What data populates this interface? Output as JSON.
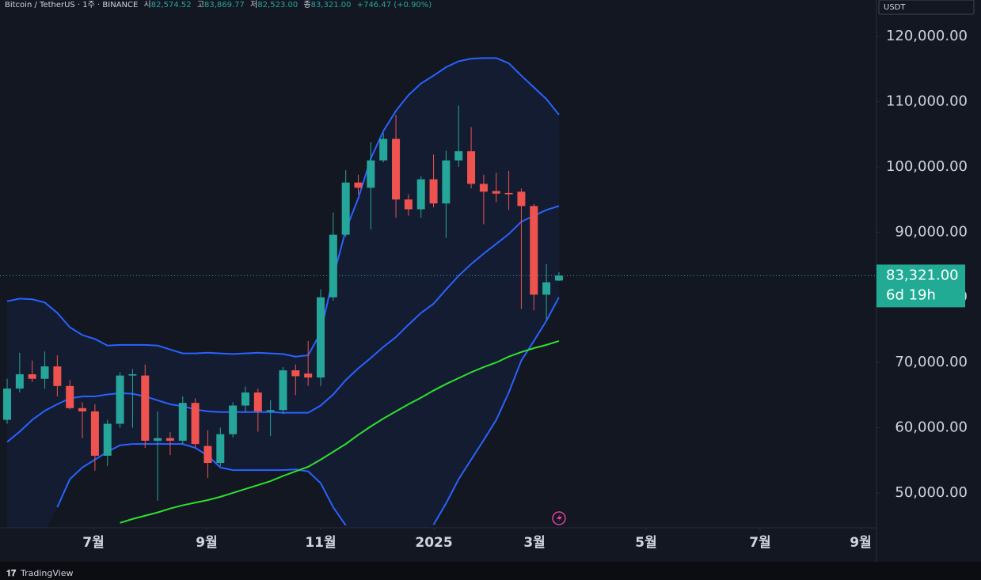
{
  "header": {
    "symbol": "Bitcoin / TetherUS · 1주 · BINANCE",
    "open_label": "시",
    "open": "82,574.52",
    "high_label": "고",
    "high": "83,869.77",
    "low_label": "저",
    "low": "82,523.00",
    "close_label": "종",
    "close": "83,321.00",
    "change": "+746.47 (+0.90%)"
  },
  "footer": {
    "brand": "TradingView"
  },
  "chart_data": {
    "type": "candlestick",
    "currency": "USDT",
    "countdown": "6d 19h",
    "last_price_label": "83,321.00",
    "up_color": "#26a69a",
    "down_color": "#ef5350",
    "ylim": [
      44650,
      125600
    ],
    "yticks": [
      {
        "value": 50000,
        "label": "50,000.00"
      },
      {
        "value": 60000,
        "label": "60,000.00"
      },
      {
        "value": 70000,
        "label": "70,000.00"
      },
      {
        "value": 80000,
        "label": "80,000.00"
      },
      {
        "value": 90000,
        "label": "90,000.00"
      },
      {
        "value": 100000,
        "label": "100,000.00"
      },
      {
        "value": 110000,
        "label": "110,000.00"
      },
      {
        "value": 120000,
        "label": "120,000.00"
      }
    ],
    "xlim": [
      -0.57,
      69.32
    ],
    "xticks": [
      {
        "value": 6.88,
        "label": "7월"
      },
      {
        "value": 15.91,
        "label": "9월"
      },
      {
        "value": 25.0,
        "label": "11월"
      },
      {
        "value": 34.03,
        "label": "2025"
      },
      {
        "value": 42.05,
        "label": "3월"
      },
      {
        "value": 50.95,
        "label": "5월"
      },
      {
        "value": 60.04,
        "label": "7월"
      },
      {
        "value": 68.06,
        "label": "9월"
      }
    ],
    "open": [
      61200,
      66000,
      68200,
      67500,
      69400,
      66400,
      63000,
      62500,
      55700,
      60600,
      68000,
      68000,
      58000,
      58400,
      58000,
      63800,
      57200,
      54600,
      59000,
      63400,
      65400,
      62500,
      62700,
      68800,
      68300,
      67700,
      80000,
      89600,
      97600,
      96800,
      101000,
      104300,
      95000,
      93500,
      98100,
      94400,
      101000,
      102400,
      97400,
      96300,
      96000,
      96200,
      94000,
      80400,
      82574.52
    ],
    "high": [
      67500,
      71500,
      70300,
      71700,
      71100,
      67300,
      63900,
      63600,
      61200,
      68500,
      69000,
      69700,
      62500,
      59300,
      64800,
      64500,
      59600,
      60000,
      63900,
      66300,
      66000,
      64200,
      69300,
      69700,
      73300,
      81200,
      93000,
      99500,
      98800,
      103800,
      105200,
      108000,
      95800,
      98600,
      101900,
      102500,
      109400,
      106100,
      98800,
      99100,
      99400,
      96700,
      94300,
      85100,
      83869.77
    ],
    "low": [
      60600,
      65400,
      67000,
      66000,
      64800,
      62800,
      58400,
      53400,
      54100,
      60000,
      60000,
      56900,
      48800,
      55800,
      57500,
      56900,
      52300,
      54100,
      58500,
      62400,
      59400,
      58700,
      62100,
      65000,
      66400,
      66400,
      79500,
      89300,
      95800,
      90400,
      100700,
      92200,
      92500,
      92200,
      93800,
      89100,
      100000,
      96700,
      91200,
      94600,
      93400,
      78200,
      78000,
      76600,
      82523
    ],
    "close": [
      66000,
      68200,
      67500,
      69400,
      66400,
      63000,
      62500,
      55700,
      60600,
      68000,
      68200,
      58000,
      58400,
      58000,
      63800,
      57500,
      54600,
      59000,
      63400,
      65400,
      62500,
      62700,
      68800,
      67900,
      67700,
      80000,
      89600,
      97600,
      96800,
      101000,
      104300,
      95000,
      93500,
      98100,
      94400,
      101000,
      102400,
      97400,
      96200,
      95900,
      95800,
      94000,
      80400,
      82300,
      83321
    ],
    "series": [
      {
        "color": "#2962ff",
        "values": [
          79400,
          79800,
          79700,
          79200,
          77600,
          75400,
          74200,
          73600,
          72600,
          72700,
          72700,
          72700,
          72600,
          72000,
          71400,
          71400,
          71500,
          71400,
          71300,
          71400,
          71500,
          71400,
          71300,
          70900,
          71100,
          74600,
          83100,
          90300,
          95200,
          101300,
          105500,
          108600,
          111000,
          112800,
          114000,
          115300,
          116200,
          116600,
          116700,
          116700,
          115900,
          114000,
          112200,
          110400,
          108000
        ]
      },
      {
        "color": "#2962ff",
        "values": [
          57800,
          59400,
          61200,
          62600,
          63600,
          64500,
          64800,
          64800,
          65100,
          65300,
          65200,
          64800,
          64200,
          63600,
          63300,
          62800,
          62500,
          62400,
          62400,
          62400,
          62400,
          62400,
          62300,
          62300,
          62300,
          63400,
          65100,
          67300,
          69100,
          70700,
          72400,
          73900,
          75800,
          77600,
          79000,
          81200,
          83300,
          85100,
          86700,
          88200,
          89700,
          91600,
          92500,
          93400,
          94000
        ]
      },
      {
        "color": "#2962ff",
        "values": [
          null,
          null,
          null,
          null,
          47800,
          52100,
          53900,
          55100,
          56300,
          57300,
          57500,
          57500,
          57500,
          57500,
          57500,
          56900,
          55700,
          53900,
          53500,
          53500,
          53500,
          53500,
          53500,
          53600,
          53300,
          51500,
          47800,
          45000,
          null,
          null,
          null,
          null,
          null,
          null,
          45100,
          48400,
          52100,
          55100,
          58100,
          61200,
          65400,
          70300,
          73300,
          76400,
          80000
        ]
      },
      {
        "color": "#2ee02e",
        "values": [
          null,
          null,
          null,
          null,
          null,
          null,
          null,
          null,
          null,
          45400,
          46000,
          46500,
          47000,
          47600,
          48100,
          48500,
          48900,
          49400,
          50000,
          50600,
          51200,
          51800,
          52600,
          53300,
          54000,
          55100,
          56300,
          57500,
          58900,
          60200,
          61400,
          62500,
          63600,
          64600,
          65700,
          66700,
          67600,
          68500,
          69300,
          70000,
          70900,
          71600,
          72200,
          72700,
          73300
        ]
      }
    ]
  }
}
